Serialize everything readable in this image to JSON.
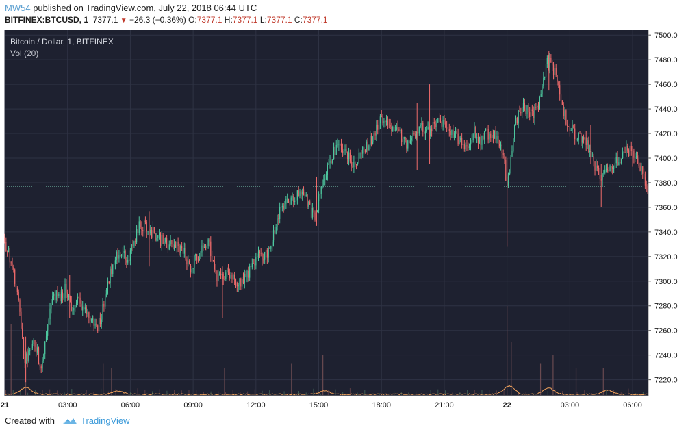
{
  "header": {
    "author": "MW54",
    "published": "published on TradingView.com, July 22, 2018 06:44 UTC",
    "symbol": "BITFINEX:BTCUSD, 1",
    "last": "7377.1",
    "change_arrow": "▼",
    "change": "−26.3 (−0.36%)",
    "o_label": "O:",
    "o_value": "7377.1",
    "h_label": "H:",
    "h_value": "7377.1",
    "l_label": "L:",
    "l_value": "7377.1",
    "c_label": "C:",
    "c_value": "7377.1"
  },
  "legend": {
    "title": "Bitcoin / Dollar, 1, BITFINEX",
    "volume": "Vol (20)"
  },
  "footer": {
    "created_with": "Created with",
    "brand": "TradingView"
  },
  "colors": {
    "background": "#1e2130",
    "grid": "#2f3344",
    "up": "#4ec9a0",
    "down": "#ef6b6b",
    "volume_ma": "#f0a25c",
    "last_line": "#6fb4a0",
    "axis_text": "#1c1c1c"
  },
  "chart_data": {
    "type": "candlestick",
    "title": "Bitcoin / Dollar, 1, BITFINEX",
    "interval": "1 minute",
    "y_ticks": [
      7220,
      7240,
      7260,
      7280,
      7300,
      7320,
      7340,
      7360,
      7380,
      7400,
      7420,
      7440,
      7460,
      7480,
      7500
    ],
    "ylim": [
      7207,
      7504
    ],
    "x_tick_labels": [
      "21",
      "03:00",
      "06:00",
      "09:00",
      "12:00",
      "15:00",
      "18:00",
      "21:00",
      "22",
      "03:00",
      "06:00"
    ],
    "x_tick_hours": [
      0,
      3,
      6,
      9,
      12,
      15,
      18,
      21,
      24,
      27,
      30
    ],
    "x_range_hours": [
      0,
      30.75
    ],
    "last_price": 7377.1,
    "price_path": [
      [
        0.0,
        7335
      ],
      [
        0.3,
        7320
      ],
      [
        0.6,
        7295
      ],
      [
        0.8,
        7270
      ],
      [
        1.0,
        7235
      ],
      [
        1.2,
        7240
      ],
      [
        1.5,
        7250
      ],
      [
        1.8,
        7230
      ],
      [
        2.1,
        7265
      ],
      [
        2.4,
        7290
      ],
      [
        2.7,
        7285
      ],
      [
        3.0,
        7295
      ],
      [
        3.3,
        7275
      ],
      [
        3.6,
        7285
      ],
      [
        3.9,
        7275
      ],
      [
        4.2,
        7268
      ],
      [
        4.5,
        7262
      ],
      [
        4.7,
        7275
      ],
      [
        5.0,
        7300
      ],
      [
        5.3,
        7320
      ],
      [
        5.6,
        7325
      ],
      [
        5.9,
        7315
      ],
      [
        6.2,
        7330
      ],
      [
        6.5,
        7345
      ],
      [
        6.8,
        7345
      ],
      [
        7.1,
        7340
      ],
      [
        7.4,
        7335
      ],
      [
        7.8,
        7330
      ],
      [
        8.2,
        7328
      ],
      [
        8.6,
        7325
      ],
      [
        8.9,
        7310
      ],
      [
        9.2,
        7320
      ],
      [
        9.5,
        7325
      ],
      [
        9.8,
        7335
      ],
      [
        10.1,
        7305
      ],
      [
        10.4,
        7300
      ],
      [
        10.7,
        7310
      ],
      [
        11.0,
        7300
      ],
      [
        11.4,
        7300
      ],
      [
        11.8,
        7310
      ],
      [
        12.1,
        7320
      ],
      [
        12.4,
        7320
      ],
      [
        12.7,
        7325
      ],
      [
        13.0,
        7345
      ],
      [
        13.3,
        7360
      ],
      [
        13.6,
        7365
      ],
      [
        14.0,
        7368
      ],
      [
        14.3,
        7375
      ],
      [
        14.6,
        7360
      ],
      [
        14.9,
        7350
      ],
      [
        15.2,
        7380
      ],
      [
        15.5,
        7395
      ],
      [
        15.8,
        7405
      ],
      [
        16.1,
        7410
      ],
      [
        16.5,
        7400
      ],
      [
        16.8,
        7395
      ],
      [
        17.1,
        7405
      ],
      [
        17.4,
        7410
      ],
      [
        17.7,
        7420
      ],
      [
        18.0,
        7430
      ],
      [
        18.3,
        7432
      ],
      [
        18.6,
        7425
      ],
      [
        18.9,
        7420
      ],
      [
        19.2,
        7412
      ],
      [
        19.5,
        7415
      ],
      [
        19.9,
        7428
      ],
      [
        20.2,
        7420
      ],
      [
        20.5,
        7425
      ],
      [
        20.8,
        7430
      ],
      [
        21.2,
        7425
      ],
      [
        21.5,
        7418
      ],
      [
        21.8,
        7415
      ],
      [
        22.1,
        7410
      ],
      [
        22.5,
        7420
      ],
      [
        22.8,
        7415
      ],
      [
        23.1,
        7420
      ],
      [
        23.4,
        7420
      ],
      [
        23.7,
        7410
      ],
      [
        23.9,
        7405
      ],
      [
        24.05,
        7375
      ],
      [
        24.2,
        7395
      ],
      [
        24.4,
        7425
      ],
      [
        24.7,
        7440
      ],
      [
        25.0,
        7440
      ],
      [
        25.3,
        7435
      ],
      [
        25.6,
        7445
      ],
      [
        25.9,
        7475
      ],
      [
        26.1,
        7480
      ],
      [
        26.4,
        7465
      ],
      [
        26.7,
        7440
      ],
      [
        27.0,
        7425
      ],
      [
        27.3,
        7420
      ],
      [
        27.6,
        7415
      ],
      [
        27.9,
        7410
      ],
      [
        28.2,
        7395
      ],
      [
        28.5,
        7385
      ],
      [
        28.8,
        7390
      ],
      [
        29.1,
        7395
      ],
      [
        29.4,
        7400
      ],
      [
        29.7,
        7405
      ],
      [
        30.0,
        7405
      ],
      [
        30.3,
        7395
      ],
      [
        30.6,
        7385
      ],
      [
        30.75,
        7377.1
      ]
    ],
    "wicks": [
      [
        1.0,
        7218,
        7255
      ],
      [
        3.1,
        7270,
        7305
      ],
      [
        4.4,
        7253,
        7280
      ],
      [
        6.9,
        7312,
        7357
      ],
      [
        10.4,
        7270,
        7312
      ],
      [
        14.9,
        7345,
        7385
      ],
      [
        19.7,
        7390,
        7445
      ],
      [
        20.3,
        7395,
        7460
      ],
      [
        24.0,
        7328,
        7400
      ],
      [
        26.0,
        7455,
        7487
      ],
      [
        28.0,
        7395,
        7427
      ],
      [
        28.5,
        7360,
        7395
      ],
      [
        30.0,
        7393,
        7410
      ]
    ],
    "volume": {
      "ma_label": "Vol (20)",
      "ma_baseline": 0.03,
      "spikes": [
        [
          0.3,
          0.8
        ],
        [
          1.0,
          0.5
        ],
        [
          4.7,
          0.35
        ],
        [
          5.1,
          0.3
        ],
        [
          10.5,
          0.3
        ],
        [
          13.7,
          0.35
        ],
        [
          15.2,
          0.45
        ],
        [
          24.0,
          1.0
        ],
        [
          24.2,
          0.6
        ],
        [
          25.6,
          0.35
        ],
        [
          26.2,
          0.45
        ],
        [
          27.3,
          0.3
        ],
        [
          28.6,
          0.3
        ]
      ],
      "ma_bumps": [
        [
          1.0,
          0.25
        ],
        [
          5.4,
          0.12
        ],
        [
          15.3,
          0.12
        ],
        [
          24.1,
          0.3
        ],
        [
          26.0,
          0.22
        ],
        [
          28.8,
          0.15
        ]
      ]
    }
  }
}
